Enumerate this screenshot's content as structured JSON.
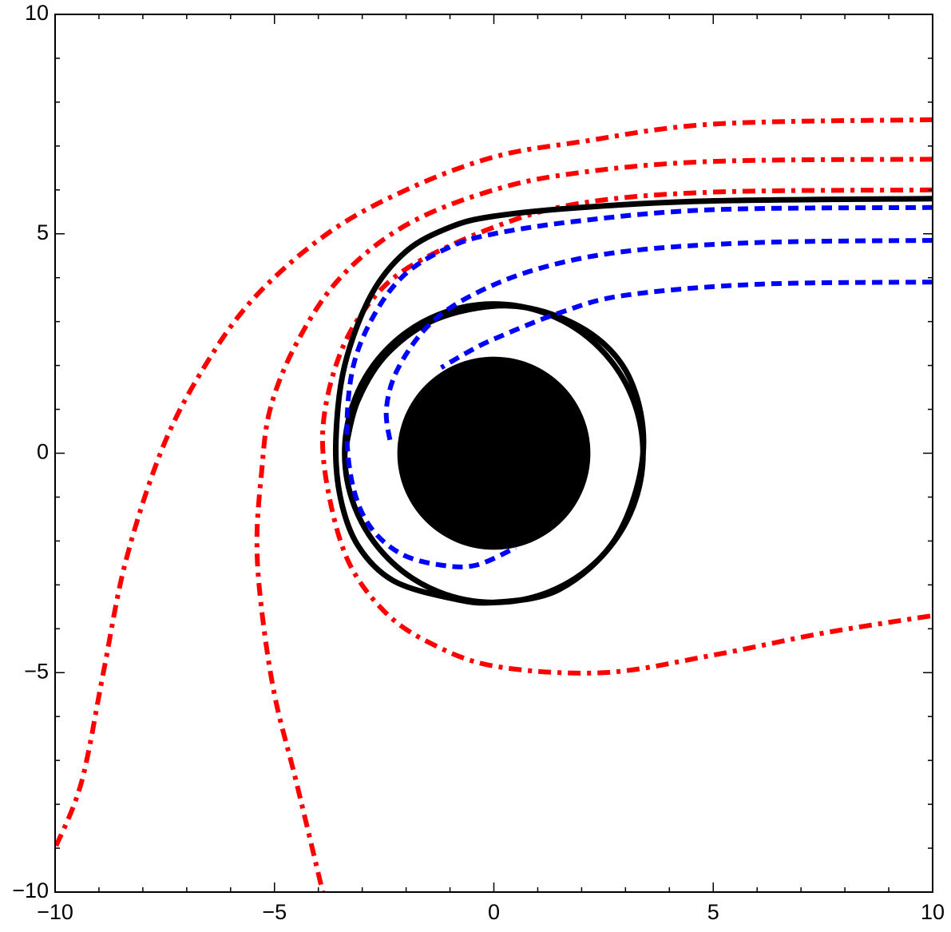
{
  "chart_data": {
    "type": "line",
    "xlim": [
      -10,
      10
    ],
    "ylim": [
      -10,
      10
    ],
    "xticks": [
      {
        "value": -10,
        "label": "−10"
      },
      {
        "value": -5,
        "label": "−5"
      },
      0,
      5,
      10
    ],
    "yticks": [
      {
        "value": -10,
        "label": "−10"
      },
      {
        "value": -5,
        "label": "−5"
      },
      0,
      5,
      10
    ],
    "xminorticks": [
      -9,
      -8,
      -7,
      -6,
      -4,
      -3,
      -2,
      -1,
      1,
      2,
      3,
      4,
      6,
      7,
      8,
      9
    ],
    "yminorticks": [
      -9,
      -8,
      -7,
      -6,
      -4,
      -3,
      -2,
      -1,
      1,
      2,
      3,
      4,
      6,
      7,
      8,
      9
    ],
    "horizon": {
      "r": 2.2,
      "color": "#000000"
    },
    "photon_ring": {
      "r": 3.4,
      "color": "#000000"
    },
    "series": [
      {
        "color": "#ff0000",
        "style": "dashdot",
        "x": [
          10,
          5,
          2,
          0,
          -2,
          -3.8,
          -5.5,
          -6.7,
          -7.6,
          -8.4,
          -8.9,
          -9.4,
          -10
        ],
        "y": [
          7.6,
          7.5,
          7.1,
          6.75,
          6.0,
          5.0,
          3.5,
          1.8,
          0,
          -2.5,
          -5,
          -7.5,
          -9.0
        ]
      },
      {
        "color": "#ff0000",
        "style": "dashdot",
        "x": [
          10,
          5,
          2,
          0,
          -2,
          -3.5,
          -4.5,
          -5.1,
          -5.3,
          -5.4,
          -5.3,
          -5.0,
          -4.5,
          -3.9
        ],
        "y": [
          6.7,
          6.65,
          6.4,
          6.0,
          5.2,
          4.0,
          2.5,
          1.0,
          -0.5,
          -2,
          -3.5,
          -5.5,
          -7.5,
          -10
        ]
      },
      {
        "color": "#ff0000",
        "style": "dashdot",
        "x": [
          10,
          5,
          2,
          0,
          -2,
          -3,
          -3.6,
          -3.9,
          -3.75,
          -3.3,
          -2.5,
          -1.5,
          0,
          2.5,
          5,
          7.5,
          10
        ],
        "y": [
          6.0,
          5.95,
          5.7,
          5.15,
          4.2,
          3.2,
          2.0,
          0.5,
          -1,
          -2.5,
          -3.6,
          -4.3,
          -4.85,
          -5.0,
          -4.6,
          -4.1,
          -3.7
        ]
      },
      {
        "color": "#000000",
        "style": "solid",
        "x": [
          10,
          5,
          2,
          0,
          -1,
          -2,
          -2.8,
          -3.4,
          -3.6,
          -3.5,
          -3.1,
          -2.3,
          -1,
          0,
          1.5,
          2.8,
          3.4,
          3.1,
          2.1,
          0.5,
          -1.2,
          -2.4,
          -3.1,
          -3.4
        ],
        "y": [
          5.8,
          5.75,
          5.6,
          5.4,
          5.15,
          4.6,
          3.6,
          2.0,
          0.3,
          -1.0,
          -2.1,
          -2.9,
          -3.3,
          -3.4,
          -3.1,
          -1.9,
          0,
          1.7,
          2.8,
          3.35,
          3.1,
          2.3,
          1.2,
          0
        ]
      },
      {
        "color": "#0000ff",
        "style": "dashed",
        "x": [
          10,
          5,
          2,
          0,
          -1,
          -2,
          -2.7,
          -3.2,
          -3.35,
          -3.2,
          -2.8,
          -2.1,
          -1.2,
          -0.4,
          0.5
        ],
        "y": [
          5.6,
          5.55,
          5.3,
          5.0,
          4.7,
          4.1,
          3.2,
          2.0,
          0.5,
          -0.8,
          -1.7,
          -2.3,
          -2.55,
          -2.55,
          -2.15
        ]
      },
      {
        "color": "#0000ff",
        "style": "dashed",
        "x": [
          10,
          6,
          3,
          1,
          -0.5,
          -1.5,
          -2.2,
          -2.45,
          -2.35
        ],
        "y": [
          4.85,
          4.8,
          4.6,
          4.2,
          3.6,
          2.9,
          1.9,
          1.0,
          0.2
        ]
      },
      {
        "color": "#0000ff",
        "style": "dashed",
        "x": [
          10,
          6,
          3,
          1.5,
          0,
          -0.6,
          -1.2
        ],
        "y": [
          3.9,
          3.85,
          3.6,
          3.2,
          2.6,
          2.3,
          1.95
        ]
      }
    ]
  }
}
